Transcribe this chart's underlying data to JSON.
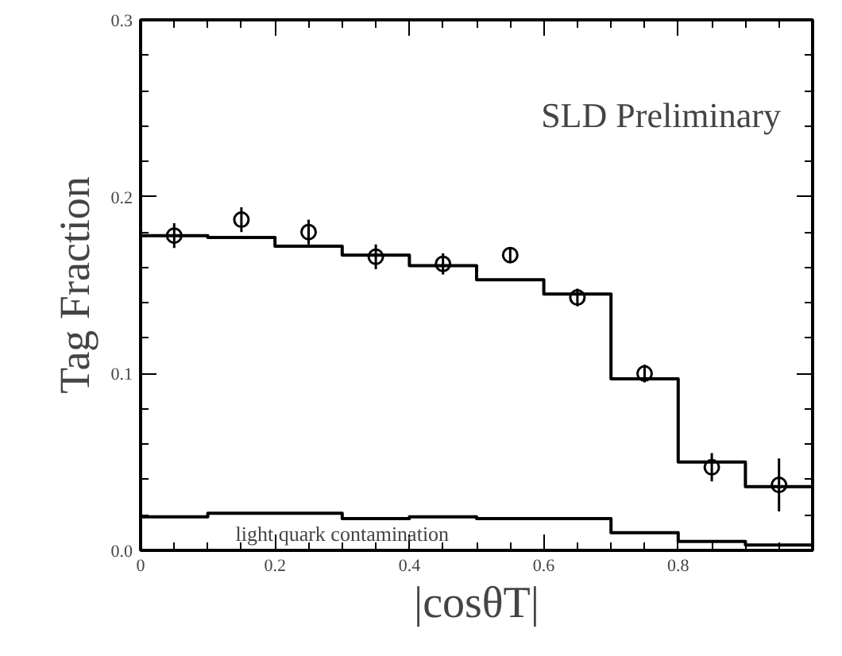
{
  "chart_data": {
    "type": "scatter",
    "ylabel": "Tag Fraction",
    "xlabel": "|cosθT|",
    "annotations": [
      "SLD Preliminary",
      {
        "text": "light quark contamination",
        "x": 0.3,
        "y": 0.019
      }
    ],
    "xlim": [
      0,
      1
    ],
    "ylim": [
      0,
      0.3
    ],
    "xticks": [
      {
        "value": 0,
        "label": "0"
      },
      0.2,
      0.4,
      0.6,
      0.8
    ],
    "yticks": [
      {
        "value": 0,
        "label": "0.0"
      },
      0.1,
      0.2,
      0.3
    ],
    "series": [
      {
        "type": "scatter",
        "color": "#000000",
        "marker": "circle",
        "x": [
          0.05,
          0.15,
          0.25,
          0.35,
          0.45,
          0.55,
          0.65,
          0.75,
          0.85,
          0.95
        ],
        "values": [
          0.178,
          0.187,
          0.18,
          0.166,
          0.162,
          0.167,
          0.143,
          0.1,
          0.047,
          0.037
        ],
        "errors": [
          0.007,
          0.007,
          0.007,
          0.007,
          0.006,
          0.004,
          0.005,
          0.005,
          0.008,
          0.015
        ]
      },
      {
        "type": "step",
        "color": "#000000",
        "x": [
          0,
          0.1,
          0.2,
          0.3,
          0.4,
          0.5,
          0.6,
          0.7,
          0.8,
          0.9,
          1
        ],
        "values": [
          0.178,
          0.177,
          0.172,
          0.167,
          0.161,
          0.153,
          0.145,
          0.097,
          0.05,
          0.036,
          0.036
        ]
      },
      {
        "type": "step",
        "color": "#000000",
        "x": [
          0,
          0.1,
          0.2,
          0.3,
          0.4,
          0.5,
          0.6,
          0.7,
          0.8,
          0.9,
          1
        ],
        "values": [
          0.019,
          0.021,
          0.021,
          0.018,
          0.019,
          0.018,
          0.018,
          0.01,
          0.005,
          0.003,
          0.003
        ]
      }
    ]
  }
}
